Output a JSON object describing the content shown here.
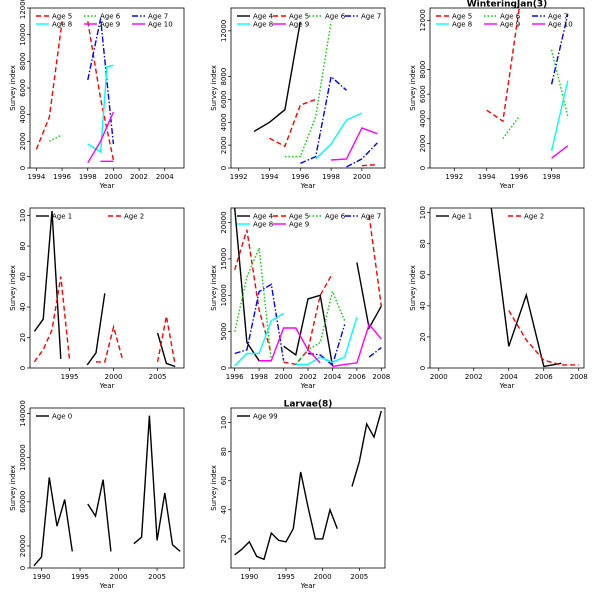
{
  "colors": {
    "Age 0": "#000000",
    "Age 1": "#000000",
    "Age 2": "#ff0000",
    "Age 4": "#000000",
    "Age 5": "#ff0000",
    "Age 6": "#00cc00",
    "Age 7": "#0000ff",
    "Age 8": "#00ffff",
    "Age 9": "#ff00ff",
    "Age 10": "#ff00ff",
    "Age 99": "#000000"
  },
  "dash": {
    "Age 0": "",
    "Age 1": "",
    "Age 2": "5,3",
    "Age 4": "",
    "Age 5": "5,3",
    "Age 6": "1.5,2",
    "Age 7": "6,2,1.5,2",
    "Age 8": "",
    "Age 9": "",
    "Age 10": "",
    "Age 99": ""
  },
  "chart_data": [
    {
      "type": "line",
      "title": "",
      "xlabel": "Year",
      "ylabel": "Survey index",
      "xlim": [
        1993.5,
        2005.5
      ],
      "ylim": [
        0,
        12000
      ],
      "xticks": [
        1994,
        1996,
        1998,
        2000,
        2002,
        2004
      ],
      "yticks": [
        0,
        2000,
        4000,
        6000,
        8000,
        10000,
        12000
      ],
      "legend_cols": 3,
      "legend": [
        "Age 5",
        "Age 6",
        "Age 7",
        "Age 8",
        "Age 9",
        "Age 10"
      ],
      "series": [
        {
          "name": "Age 5",
          "x": [
            1994,
            1995,
            1996
          ],
          "y": [
            1400,
            3800,
            11000
          ]
        },
        {
          "name": "Age 5",
          "x": [
            1998,
            1999,
            2000
          ],
          "y": [
            11000,
            5200,
            600
          ]
        },
        {
          "name": "Age 6",
          "x": [
            1995,
            1996
          ],
          "y": [
            2000,
            2500
          ]
        },
        {
          "name": "Age 7",
          "x": [
            1998,
            1999,
            2000
          ],
          "y": [
            6600,
            11200,
            1800
          ]
        },
        {
          "name": "Age 8",
          "x": [
            1998,
            1999,
            1999.5,
            2000
          ],
          "y": [
            1800,
            1200,
            7600,
            7700
          ]
        },
        {
          "name": "Age 9",
          "x": [
            1998,
            1999,
            2000
          ],
          "y": [
            400,
            2000,
            4200
          ]
        },
        {
          "name": "Age 10",
          "x": [
            1999,
            2000
          ],
          "y": [
            500,
            500
          ]
        }
      ]
    },
    {
      "type": "line",
      "title": "",
      "xlabel": "Year",
      "ylabel": "Survey index",
      "xlim": [
        1991.5,
        2001.5
      ],
      "ylim": [
        0,
        14000
      ],
      "xticks": [
        1992,
        1994,
        1996,
        1998,
        2000
      ],
      "yticks": [
        0,
        2000,
        4000,
        6000,
        8000,
        12000
      ],
      "legend_cols": 4,
      "legend": [
        "Age 4",
        "Age 5",
        "Age 6",
        "Age 7",
        "Age 8",
        "Age 9",
        ""
      ],
      "series": [
        {
          "name": "Age 4",
          "x": [
            1993,
            1994,
            1995,
            1996
          ],
          "y": [
            3200,
            4000,
            5100,
            12800
          ]
        },
        {
          "name": "Age 5",
          "x": [
            1994,
            1995,
            1996,
            1997
          ],
          "y": [
            2600,
            1900,
            5500,
            6000
          ]
        },
        {
          "name": "Age 6",
          "x": [
            1995,
            1996,
            1997,
            1998
          ],
          "y": [
            1000,
            1000,
            4500,
            12800
          ]
        },
        {
          "name": "Age 7",
          "x": [
            1996,
            1997,
            1998,
            1999
          ],
          "y": [
            400,
            1000,
            8000,
            6800
          ]
        },
        {
          "name": "Age 7",
          "x": [
            1999,
            2000,
            2001
          ],
          "y": [
            100,
            800,
            2200
          ]
        },
        {
          "name": "Age 8",
          "x": [
            1997,
            1998,
            1999,
            2000
          ],
          "y": [
            800,
            2100,
            4200,
            4800
          ]
        },
        {
          "name": "Age 9",
          "x": [
            1998,
            1999,
            2000,
            2001
          ],
          "y": [
            700,
            800,
            3500,
            3000
          ]
        },
        {
          "name": "Age 5",
          "x": [
            2000,
            2001
          ],
          "y": [
            200,
            300
          ]
        }
      ]
    },
    {
      "type": "line",
      "title": "WinteringJan(3)",
      "xlabel": "Year",
      "ylabel": "Survey index",
      "xlim": [
        1990.5,
        2000
      ],
      "ylim": [
        0,
        13000
      ],
      "xticks": [
        1992,
        1994,
        1996,
        1998
      ],
      "yticks": [
        0,
        2000,
        4000,
        6000,
        8000,
        12000
      ],
      "legend_cols": 3,
      "legend": [
        "Age 5",
        "Age 6",
        "Age 7",
        "Age 8",
        "Age 9",
        "Age 10"
      ],
      "series": [
        {
          "name": "Age 5",
          "x": [
            1994,
            1995,
            1996
          ],
          "y": [
            4700,
            3800,
            13000
          ]
        },
        {
          "name": "Age 6",
          "x": [
            1995,
            1996
          ],
          "y": [
            2400,
            4200
          ]
        },
        {
          "name": "Age 6",
          "x": [
            1998,
            1999
          ],
          "y": [
            9600,
            4200
          ]
        },
        {
          "name": "Age 7",
          "x": [
            1998,
            1999
          ],
          "y": [
            6800,
            12500
          ]
        },
        {
          "name": "Age 8",
          "x": [
            1998,
            1999
          ],
          "y": [
            1400,
            7100
          ]
        },
        {
          "name": "Age 9",
          "x": [
            1998,
            1999
          ],
          "y": [
            800,
            1800
          ]
        }
      ]
    },
    {
      "type": "line",
      "title": "",
      "xlabel": "Year",
      "ylabel": "Survey index",
      "xlim": [
        1990.5,
        2008
      ],
      "ylim": [
        0,
        105
      ],
      "xticks": [
        1995,
        2000,
        2005
      ],
      "yticks": [
        0,
        20,
        40,
        60,
        80,
        100
      ],
      "legend_cols": 2,
      "legend": [
        "Age 1",
        "Age 2"
      ],
      "series": [
        {
          "name": "Age 1",
          "x": [
            1991,
            1992,
            1993,
            1994
          ],
          "y": [
            24,
            32,
            103,
            6
          ]
        },
        {
          "name": "Age 1",
          "x": [
            1997,
            1998,
            1999
          ],
          "y": [
            2,
            10,
            49
          ]
        },
        {
          "name": "Age 1",
          "x": [
            2005,
            2006,
            2007
          ],
          "y": [
            23,
            3,
            1
          ]
        },
        {
          "name": "Age 2",
          "x": [
            1991,
            1992,
            1993,
            1994,
            1995
          ],
          "y": [
            4,
            12,
            25,
            60,
            5
          ]
        },
        {
          "name": "Age 2",
          "x": [
            1998,
            1999,
            2000,
            2001
          ],
          "y": [
            4,
            4,
            27,
            6
          ]
        },
        {
          "name": "Age 2",
          "x": [
            2005,
            2006,
            2007
          ],
          "y": [
            4,
            34,
            2
          ]
        }
      ]
    },
    {
      "type": "line",
      "title": "",
      "xlabel": "Year",
      "ylabel": "Survey index",
      "xlim": [
        1995.7,
        2008.3
      ],
      "ylim": [
        0,
        22000
      ],
      "xticks": [
        1996,
        1998,
        2000,
        2002,
        2004,
        2006,
        2008
      ],
      "yticks": [
        0,
        5000,
        10000,
        15000,
        20000
      ],
      "legend_cols": 4,
      "legend": [
        "Age 4",
        "Age 5",
        "Age 6",
        "Age 7",
        "Age 8",
        "Age 9",
        ""
      ],
      "series": [
        {
          "name": "Age 4",
          "x": [
            1996,
            1997,
            1998,
            1999
          ],
          "y": [
            22000,
            3500,
            1000,
            1000
          ]
        },
        {
          "name": "Age 4",
          "x": [
            2000,
            2001,
            2002,
            2003,
            2004
          ],
          "y": [
            3000,
            1800,
            9500,
            10000,
            400
          ]
        },
        {
          "name": "Age 4",
          "x": [
            2006,
            2007,
            2008
          ],
          "y": [
            14500,
            5500,
            8500
          ]
        },
        {
          "name": "Age 5",
          "x": [
            1996,
            1997,
            1998,
            1999
          ],
          "y": [
            13500,
            19000,
            8000,
            2000
          ]
        },
        {
          "name": "Age 5",
          "x": [
            2000,
            2001,
            2002,
            2003,
            2004
          ],
          "y": [
            800,
            500,
            2500,
            10000,
            13000
          ]
        },
        {
          "name": "Age 5",
          "x": [
            2007,
            2008
          ],
          "y": [
            21000,
            8500
          ]
        },
        {
          "name": "Age 6",
          "x": [
            1996,
            1997,
            1998,
            1999
          ],
          "y": [
            5000,
            12500,
            16500,
            1000
          ]
        },
        {
          "name": "Age 6",
          "x": [
            2001,
            2002,
            2003,
            2004,
            2005
          ],
          "y": [
            500,
            2500,
            3500,
            10500,
            6500
          ]
        },
        {
          "name": "Age 7",
          "x": [
            1996,
            1997,
            1998,
            1999,
            2000
          ],
          "y": [
            2000,
            2500,
            10500,
            11500,
            1000
          ]
        },
        {
          "name": "Age 7",
          "x": [
            2002,
            2003,
            2004,
            2005
          ],
          "y": [
            2000,
            1800,
            400,
            6000
          ]
        },
        {
          "name": "Age 7",
          "x": [
            2007,
            2008
          ],
          "y": [
            1500,
            2800
          ]
        },
        {
          "name": "Age 8",
          "x": [
            1996,
            1997,
            1998,
            1999,
            2000
          ],
          "y": [
            300,
            2000,
            2000,
            6500,
            7500
          ]
        },
        {
          "name": "Age 8",
          "x": [
            2001,
            2002,
            2003,
            2004,
            2005,
            2006
          ],
          "y": [
            500,
            500,
            1500,
            800,
            1500,
            7000
          ]
        },
        {
          "name": "Age 9",
          "x": [
            1998,
            1999,
            2000,
            2001,
            2002,
            2003
          ],
          "y": [
            1000,
            1000,
            5500,
            5500,
            2500,
            700
          ]
        },
        {
          "name": "Age 9",
          "x": [
            2004,
            2005,
            2006,
            2007,
            2008
          ],
          "y": [
            200,
            500,
            700,
            6000,
            4000
          ]
        }
      ]
    },
    {
      "type": "line",
      "title": "",
      "xlabel": "Year",
      "ylabel": "Survey index",
      "xlim": [
        1999.5,
        2008.3
      ],
      "ylim": [
        0,
        103
      ],
      "xticks": [
        2000,
        2002,
        2004,
        2006,
        2008
      ],
      "yticks": [
        0,
        20,
        40,
        60,
        80,
        100
      ],
      "legend_cols": 2,
      "legend": [
        "Age 1",
        "Age 2"
      ],
      "series": [
        {
          "name": "Age 1",
          "x": [
            2003,
            2004,
            2005,
            2006,
            2007
          ],
          "y": [
            103,
            14,
            47,
            1,
            3
          ]
        },
        {
          "name": "Age 2",
          "x": [
            2004,
            2005,
            2006,
            2007,
            2008
          ],
          "y": [
            37,
            18,
            5,
            2,
            2
          ]
        }
      ]
    },
    {
      "type": "line",
      "title": "",
      "xlabel": "Year",
      "ylabel": "Survey index",
      "xlim": [
        1988.5,
        2008.5
      ],
      "ylim": [
        0,
        145000
      ],
      "xticks": [
        1990,
        1995,
        2000,
        2005
      ],
      "yticks": [
        0,
        20000,
        60000,
        100000,
        140000
      ],
      "legend_cols": 1,
      "legend": [
        "Age 0"
      ],
      "series": [
        {
          "name": "Age 0",
          "x": [
            1989,
            1990,
            1991,
            1992,
            1993,
            1994
          ],
          "y": [
            2000,
            10000,
            82000,
            38000,
            62000,
            15000
          ]
        },
        {
          "name": "Age 0",
          "x": [
            1996,
            1997,
            1998,
            1999
          ],
          "y": [
            58000,
            47000,
            80000,
            15000
          ]
        },
        {
          "name": "Age 0",
          "x": [
            2002,
            2003,
            2004,
            2005,
            2006,
            2007,
            2008
          ],
          "y": [
            22000,
            28000,
            138000,
            25000,
            68000,
            21000,
            15000
          ]
        }
      ]
    },
    {
      "type": "line",
      "title": "Larvae(8)",
      "xlabel": "Year",
      "ylabel": "Survey index",
      "xlim": [
        1987.5,
        2008.5
      ],
      "ylim": [
        0,
        110
      ],
      "xticks": [
        1990,
        1995,
        2000,
        2005
      ],
      "yticks": [
        20,
        40,
        60,
        80,
        100
      ],
      "legend_cols": 1,
      "legend": [
        "Age 99"
      ],
      "series": [
        {
          "name": "Age 99",
          "x": [
            1988,
            1989,
            1990,
            1991,
            1992,
            1993,
            1994,
            1995,
            1996,
            1997,
            1998,
            1999,
            2000,
            2001,
            2002
          ],
          "y": [
            9,
            13,
            18,
            8,
            6,
            24,
            19,
            18,
            27,
            66,
            42,
            20,
            20,
            40,
            27
          ]
        },
        {
          "name": "Age 99",
          "x": [
            2004,
            2005,
            2006,
            2007,
            2008
          ],
          "y": [
            56,
            73,
            99,
            90,
            108
          ]
        }
      ]
    }
  ]
}
